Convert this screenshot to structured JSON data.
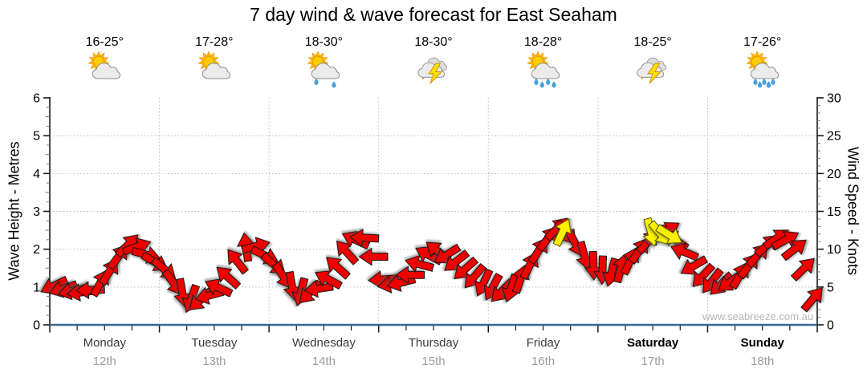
{
  "title": "7 day wind & wave forecast for East Seaham",
  "watermark": "www.seabreeze.com.au",
  "y_left": {
    "label": "Wave Height - Metres"
  },
  "y_right": {
    "label": "Wind Speed - Knots"
  },
  "days": [
    {
      "name": "Monday",
      "date": "12th",
      "temp": "16-25°",
      "bold": false,
      "icon": {
        "kind": "sun-cloud",
        "drops": 0
      }
    },
    {
      "name": "Tuesday",
      "date": "13th",
      "temp": "17-28°",
      "bold": false,
      "icon": {
        "kind": "sun-cloud",
        "drops": 0
      }
    },
    {
      "name": "Wednesday",
      "date": "14th",
      "temp": "18-30°",
      "bold": false,
      "icon": {
        "kind": "sun-cloud-rain",
        "drops": 2
      }
    },
    {
      "name": "Thursday",
      "date": "15th",
      "temp": "18-30°",
      "bold": false,
      "icon": {
        "kind": "storm",
        "drops": 0
      }
    },
    {
      "name": "Friday",
      "date": "16th",
      "temp": "18-28°",
      "bold": false,
      "icon": {
        "kind": "sun-cloud-rain",
        "drops": 4
      }
    },
    {
      "name": "Saturday",
      "date": "17th",
      "temp": "18-25°",
      "bold": true,
      "icon": {
        "kind": "storm",
        "drops": 0
      }
    },
    {
      "name": "Sunday",
      "date": "18th",
      "temp": "17-26°",
      "bold": true,
      "icon": {
        "kind": "sun-cloud-rain",
        "drops": 5
      }
    }
  ],
  "chart_data": {
    "type": "wind_arrow_timeseries",
    "title": "7 day wind & wave forecast for East Seaham",
    "x_axis": {
      "days": [
        "Monday",
        "Tuesday",
        "Wednesday",
        "Thursday",
        "Friday",
        "Saturday",
        "Sunday"
      ],
      "dates": [
        "12th",
        "13th",
        "14th",
        "15th",
        "16th",
        "17th",
        "18th"
      ],
      "samples_per_day": 12,
      "minor_ticks_per_day": 4
    },
    "y_left": {
      "label": "Wave Height - Metres",
      "min": 0,
      "max": 6,
      "major_ticks": [
        0,
        1,
        2,
        3,
        4,
        5,
        6
      ],
      "minor_step": 0.25
    },
    "y_right": {
      "label": "Wind Speed - Knots",
      "min": 0,
      "max": 30,
      "major_ticks": [
        0,
        5,
        10,
        15,
        20,
        25,
        30
      ],
      "minor_step": 1
    },
    "grid": {
      "horizontal_at_metres": [
        1,
        2,
        3,
        4,
        5
      ],
      "vertical_at_day_boundaries": true,
      "style": "dotted"
    },
    "wind_knots": [
      5.2,
      4.8,
      4.5,
      4.3,
      4.6,
      5.5,
      7.0,
      9.0,
      10.5,
      10.3,
      9.3,
      8.3,
      7.4,
      5.6,
      4.3,
      3.5,
      3.3,
      3.9,
      4.9,
      6.3,
      8.4,
      10.2,
      10.4,
      9.2,
      8.0,
      6.5,
      5.2,
      4.4,
      4.3,
      4.8,
      6.0,
      7.6,
      9.6,
      11.2,
      11.5,
      9.0,
      6.0,
      5.4,
      5.6,
      6.6,
      8.0,
      9.2,
      9.7,
      9.3,
      8.4,
      7.4,
      6.4,
      5.6,
      5.0,
      4.5,
      4.9,
      6.0,
      7.8,
      9.8,
      11.4,
      12.7,
      12.2,
      10.8,
      9.2,
      7.9,
      7.3,
      7.0,
      7.4,
      8.4,
      9.8,
      11.0,
      12.0,
      12.4,
      11.2,
      9.6,
      7.8,
      6.5,
      5.8,
      5.4,
      5.7,
      6.5,
      7.8,
      9.2,
      10.5,
      11.4,
      11.2,
      10.0,
      7.4,
      3.4
    ],
    "wind_dir_deg": [
      155,
      162,
      168,
      173,
      178,
      298,
      302,
      306,
      315,
      340,
      15,
      30,
      40,
      55,
      80,
      110,
      138,
      165,
      205,
      222,
      232,
      262,
      345,
      25,
      40,
      58,
      80,
      105,
      135,
      172,
      208,
      222,
      228,
      205,
      183,
      180,
      176,
      170,
      166,
      180,
      195,
      208,
      218,
      148,
      142,
      138,
      130,
      115,
      118,
      135,
      108,
      288,
      296,
      302,
      308,
      315,
      50,
      62,
      75,
      88,
      92,
      105,
      285,
      295,
      304,
      312,
      320,
      328,
      215,
      202,
      150,
      133,
      128,
      136,
      144,
      300,
      306,
      312,
      318,
      325,
      331,
      322,
      316,
      310
    ],
    "gusts": [
      {
        "i": 55.6,
        "knots": 12.2,
        "dir": 295
      },
      {
        "i": 65.3,
        "knots": 12.3,
        "dir": 75
      },
      {
        "i": 66.3,
        "knots": 12.1,
        "dir": 50
      },
      {
        "i": 67.3,
        "knots": 11.9,
        "dir": 32
      }
    ]
  },
  "colors": {
    "arrow_red": "#ee0000",
    "arrow_outline": "#161616",
    "gust_yellow": "#fdf000",
    "gust_outline": "#555500",
    "grid": "#bdbdbd",
    "spine": "#1a1a1a",
    "bottom_axis": "#35688e",
    "tick_minor": "#777777",
    "day_name": "#3a3a3a",
    "date_gray": "#9b9b9b",
    "watermark_gray": "#b5b5b5",
    "sun": "#ffcc00",
    "sun_ray": "#ffb400",
    "sun_edge": "#e89400",
    "cloud": "#ebebeb",
    "cloud_edge": "#8f8f8f",
    "rain": "#42a4e6",
    "rain_edge": "#2d7fb8",
    "bolt": "#ffdf00",
    "bolt_edge": "#cf8a00"
  }
}
